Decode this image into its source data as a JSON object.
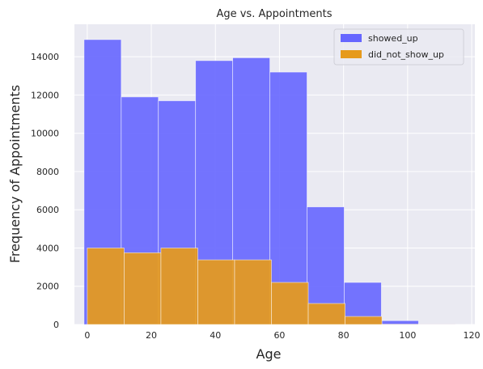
{
  "chart_data": {
    "type": "histogram",
    "title": "Age vs. Appointments",
    "xlabel": "Age",
    "ylabel": "Frequency of Appointments",
    "xlim": [
      -4,
      121
    ],
    "ylim": [
      0,
      15700
    ],
    "xticks": [
      0,
      20,
      40,
      60,
      80,
      100,
      120
    ],
    "yticks": [
      0,
      2000,
      4000,
      6000,
      8000,
      10000,
      12000,
      14000
    ],
    "grid": true,
    "legend_position": "top-right",
    "series": [
      {
        "name": "showed_up",
        "color": "#6666ff",
        "bins": [
          {
            "x0": -1.0,
            "x1": 10.6,
            "value": 14900
          },
          {
            "x0": 10.6,
            "x1": 22.2,
            "value": 11900
          },
          {
            "x0": 22.2,
            "x1": 33.8,
            "value": 11700
          },
          {
            "x0": 33.8,
            "x1": 45.4,
            "value": 13800
          },
          {
            "x0": 45.4,
            "x1": 57.0,
            "value": 13950
          },
          {
            "x0": 57.0,
            "x1": 68.6,
            "value": 13200
          },
          {
            "x0": 68.6,
            "x1": 80.2,
            "value": 6150
          },
          {
            "x0": 80.2,
            "x1": 91.8,
            "value": 2200
          },
          {
            "x0": 91.8,
            "x1": 103.4,
            "value": 200
          },
          {
            "x0": 103.4,
            "x1": 115.0,
            "value": 20
          }
        ]
      },
      {
        "name": "did_not_show_up",
        "color": "#e69a1c",
        "bins": [
          {
            "x0": 0.0,
            "x1": 11.5,
            "value": 4000
          },
          {
            "x0": 11.5,
            "x1": 23.0,
            "value": 3750
          },
          {
            "x0": 23.0,
            "x1": 34.5,
            "value": 4000
          },
          {
            "x0": 34.5,
            "x1": 46.0,
            "value": 3380
          },
          {
            "x0": 46.0,
            "x1": 57.5,
            "value": 3380
          },
          {
            "x0": 57.5,
            "x1": 69.0,
            "value": 2200
          },
          {
            "x0": 69.0,
            "x1": 80.5,
            "value": 1100
          },
          {
            "x0": 80.5,
            "x1": 92.0,
            "value": 420
          },
          {
            "x0": 92.0,
            "x1": 103.5,
            "value": 15
          },
          {
            "x0": 103.5,
            "x1": 115.0,
            "value": 5
          }
        ]
      }
    ]
  },
  "colors": {
    "plot_background": "#eaeaf2",
    "grid": "#ffffff",
    "text": "#262626"
  }
}
